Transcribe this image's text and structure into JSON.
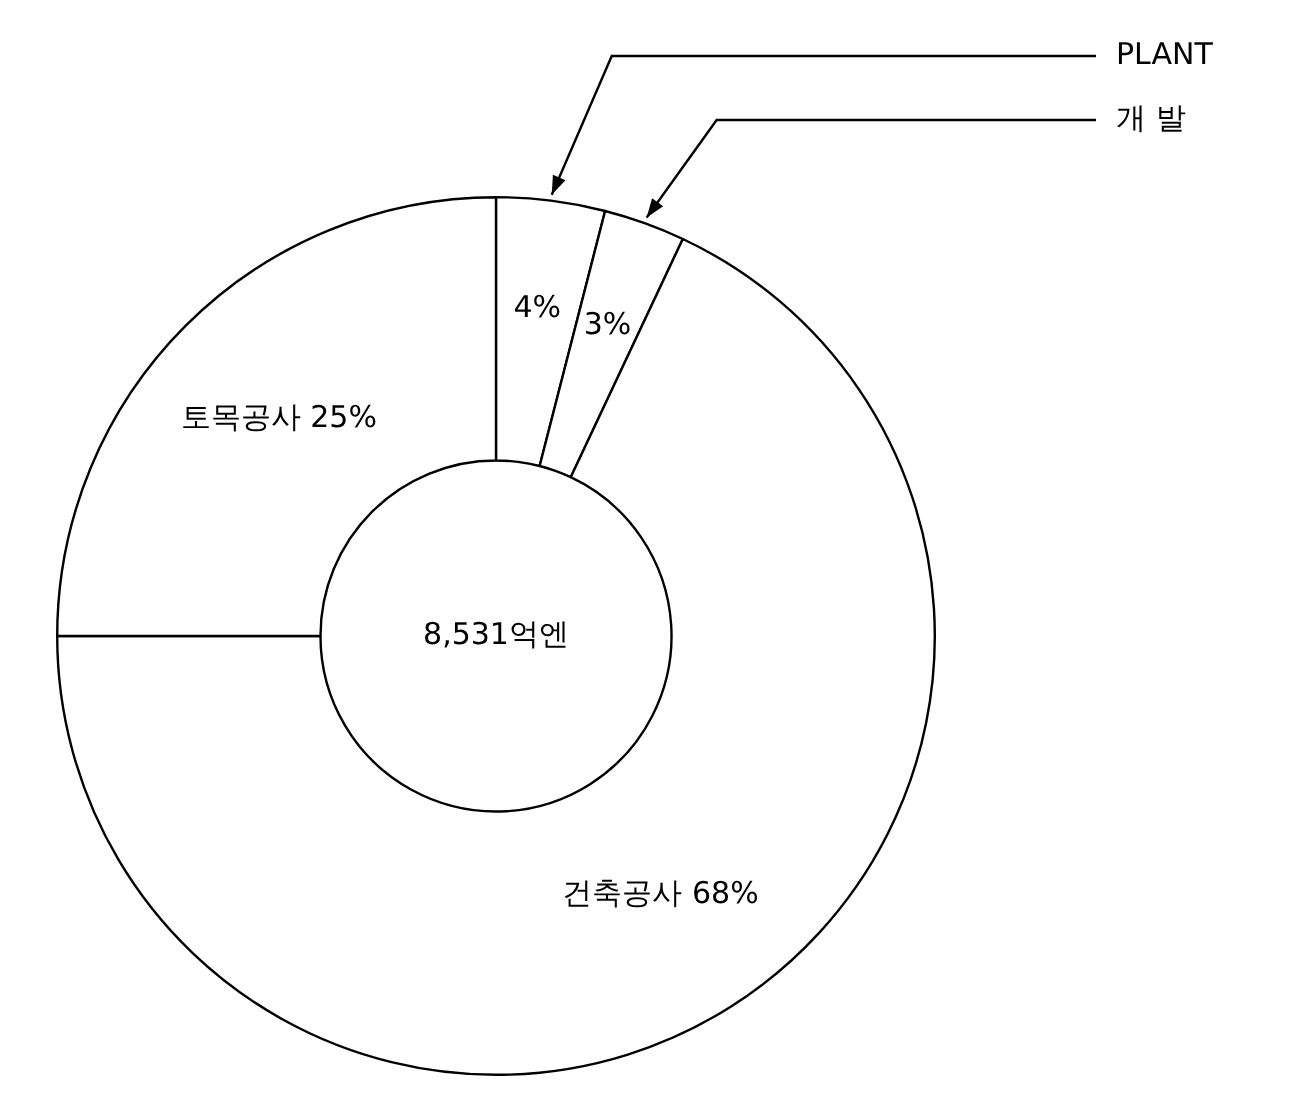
{
  "chart_data": {
    "type": "donut",
    "categories": [
      "PLANT",
      "개 발",
      "건축공사",
      "토목공사"
    ],
    "values": [
      4,
      3,
      68,
      25
    ],
    "value_labels": [
      "4%",
      "3%",
      "68%",
      "25%"
    ],
    "colors": [
      "#ffffff",
      "#ffffff",
      "#ffffff",
      "#ffffff"
    ],
    "annotations": [
      "8,531억엔"
    ],
    "legend": false
  }
}
